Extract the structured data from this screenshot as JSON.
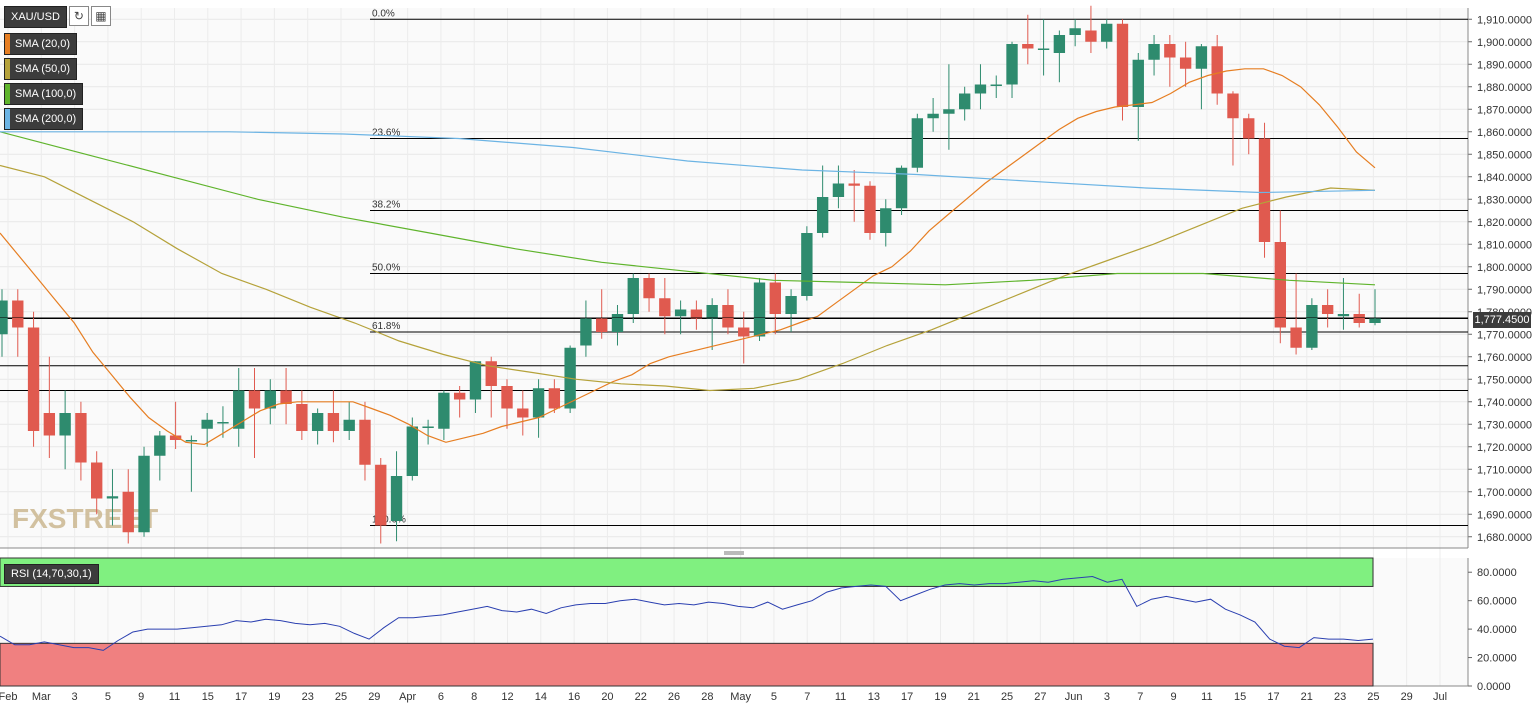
{
  "toolbar": {
    "symbol": "XAU/USD",
    "refresh_icon": "refresh-icon",
    "calendar_icon": "calendar-icon"
  },
  "indicators": [
    {
      "label": "SMA (20,0)",
      "color": "#e67e22"
    },
    {
      "label": "SMA (50,0)",
      "color": "#b5a23a"
    },
    {
      "label": "SMA (100,0)",
      "color": "#5fb42c"
    },
    {
      "label": "SMA (200,0)",
      "color": "#6cb4e4"
    }
  ],
  "watermark": "FXSTREET",
  "current_price_label": "1,777.4500",
  "rsi": {
    "label": "RSI (14,70,30,1)",
    "overbought": 70,
    "oversold": 30,
    "colors": {
      "overbought_zone": "#80f080",
      "oversold_zone": "#f08080",
      "line": "#2a3fb0"
    },
    "axis_ticks": [
      "80.0000",
      "60.0000",
      "40.0000",
      "20.0000",
      "0.0000"
    ]
  },
  "chart_data": {
    "type": "candlestick",
    "title": "",
    "ylim": [
      1675,
      1915
    ],
    "y_ticks": [
      "1,910.0000",
      "1,900.0000",
      "1,890.0000",
      "1,880.0000",
      "1,870.0000",
      "1,860.0000",
      "1,850.0000",
      "1,840.0000",
      "1,830.0000",
      "1,820.0000",
      "1,810.0000",
      "1,800.0000",
      "1,790.0000",
      "1,780.0000",
      "1,770.0000",
      "1,760.0000",
      "1,750.0000",
      "1,740.0000",
      "1,730.0000",
      "1,720.0000",
      "1,710.0000",
      "1,700.0000",
      "1,690.0000",
      "1,680.0000"
    ],
    "x_ticks": [
      "Feb",
      "Mar",
      "3",
      "5",
      "9",
      "11",
      "15",
      "17",
      "19",
      "23",
      "25",
      "29",
      "Apr",
      "6",
      "8",
      "12",
      "14",
      "16",
      "20",
      "22",
      "26",
      "28",
      "May",
      "5",
      "7",
      "11",
      "13",
      "17",
      "19",
      "21",
      "25",
      "27",
      "Jun",
      "3",
      "7",
      "9",
      "11",
      "15",
      "17",
      "21",
      "23",
      "25",
      "29",
      "Jul"
    ],
    "colors": {
      "up": "#2e8b6e",
      "down": "#e05a4f",
      "grid": "#e8e8e8"
    },
    "candles": [
      {
        "date": "Feb 26",
        "open": 1770,
        "high": 1790,
        "low": 1760,
        "close": 1785
      },
      {
        "date": "Feb 26b",
        "open": 1785,
        "high": 1790,
        "low": 1760,
        "close": 1773
      },
      {
        "date": "Mar 1",
        "open": 1773,
        "high": 1780,
        "low": 1720,
        "close": 1727
      },
      {
        "date": "Mar 2",
        "open": 1735,
        "high": 1760,
        "low": 1715,
        "close": 1725
      },
      {
        "date": "Mar 3",
        "open": 1725,
        "high": 1745,
        "low": 1710,
        "close": 1735
      },
      {
        "date": "Mar 4",
        "open": 1735,
        "high": 1740,
        "low": 1705,
        "close": 1713
      },
      {
        "date": "Mar 5",
        "open": 1713,
        "high": 1718,
        "low": 1690,
        "close": 1697
      },
      {
        "date": "Mar 8",
        "open": 1697,
        "high": 1710,
        "low": 1685,
        "close": 1698
      },
      {
        "date": "Mar 8b",
        "open": 1700,
        "high": 1710,
        "low": 1677,
        "close": 1682
      },
      {
        "date": "Mar 9",
        "open": 1682,
        "high": 1720,
        "low": 1680,
        "close": 1716
      },
      {
        "date": "Mar 10",
        "open": 1716,
        "high": 1727,
        "low": 1705,
        "close": 1725
      },
      {
        "date": "Mar 11",
        "open": 1725,
        "high": 1740,
        "low": 1719,
        "close": 1723
      },
      {
        "date": "Mar 12",
        "open": 1723,
        "high": 1725,
        "low": 1700,
        "close": 1723
      },
      {
        "date": "Mar 15",
        "open": 1728,
        "high": 1735,
        "low": 1720,
        "close": 1732
      },
      {
        "date": "Mar 16",
        "open": 1731,
        "high": 1738,
        "low": 1724,
        "close": 1731
      },
      {
        "date": "Mar 17",
        "open": 1728,
        "high": 1755,
        "low": 1720,
        "close": 1745
      },
      {
        "date": "Mar 18",
        "open": 1745,
        "high": 1755,
        "low": 1715,
        "close": 1737
      },
      {
        "date": "Mar 19",
        "open": 1737,
        "high": 1750,
        "low": 1730,
        "close": 1745
      },
      {
        "date": "Mar 22",
        "open": 1745,
        "high": 1755,
        "low": 1730,
        "close": 1739
      },
      {
        "date": "Mar 23",
        "open": 1739,
        "high": 1745,
        "low": 1723,
        "close": 1727
      },
      {
        "date": "Mar 24",
        "open": 1727,
        "high": 1737,
        "low": 1721,
        "close": 1735
      },
      {
        "date": "Mar 25",
        "open": 1735,
        "high": 1745,
        "low": 1722,
        "close": 1727
      },
      {
        "date": "Mar 26",
        "open": 1727,
        "high": 1740,
        "low": 1723,
        "close": 1732
      },
      {
        "date": "Mar 29",
        "open": 1732,
        "high": 1740,
        "low": 1705,
        "close": 1712
      },
      {
        "date": "Mar 30",
        "open": 1712,
        "high": 1715,
        "low": 1677,
        "close": 1685
      },
      {
        "date": "Mar 31",
        "open": 1687,
        "high": 1718,
        "low": 1678,
        "close": 1707
      },
      {
        "date": "Apr 1",
        "open": 1707,
        "high": 1733,
        "low": 1705,
        "close": 1729
      },
      {
        "date": "Apr 2",
        "open": 1729,
        "high": 1732,
        "low": 1721,
        "close": 1729
      },
      {
        "date": "Apr 5",
        "open": 1728,
        "high": 1745,
        "low": 1723,
        "close": 1744
      },
      {
        "date": "Apr 6",
        "open": 1744,
        "high": 1747,
        "low": 1733,
        "close": 1741
      },
      {
        "date": "Apr 7",
        "open": 1741,
        "high": 1758,
        "low": 1735,
        "close": 1758
      },
      {
        "date": "Apr 8",
        "open": 1758,
        "high": 1760,
        "low": 1733,
        "close": 1747
      },
      {
        "date": "Apr 9",
        "open": 1747,
        "high": 1750,
        "low": 1728,
        "close": 1737
      },
      {
        "date": "Apr 12",
        "open": 1737,
        "high": 1745,
        "low": 1725,
        "close": 1733
      },
      {
        "date": "Apr 13",
        "open": 1733,
        "high": 1750,
        "low": 1724,
        "close": 1746
      },
      {
        "date": "Apr 14",
        "open": 1746,
        "high": 1750,
        "low": 1735,
        "close": 1737
      },
      {
        "date": "Apr 15",
        "open": 1737,
        "high": 1765,
        "low": 1735,
        "close": 1764
      },
      {
        "date": "Apr 16",
        "open": 1765,
        "high": 1785,
        "low": 1760,
        "close": 1777
      },
      {
        "date": "Apr 19",
        "open": 1777,
        "high": 1790,
        "low": 1768,
        "close": 1771
      },
      {
        "date": "Apr 20",
        "open": 1771,
        "high": 1783,
        "low": 1765,
        "close": 1779
      },
      {
        "date": "Apr 21",
        "open": 1779,
        "high": 1797,
        "low": 1775,
        "close": 1795
      },
      {
        "date": "Apr 22",
        "open": 1795,
        "high": 1797,
        "low": 1780,
        "close": 1786
      },
      {
        "date": "Apr 23",
        "open": 1786,
        "high": 1795,
        "low": 1770,
        "close": 1778
      },
      {
        "date": "Apr 26",
        "open": 1778,
        "high": 1785,
        "low": 1770,
        "close": 1781
      },
      {
        "date": "Apr 27",
        "open": 1781,
        "high": 1785,
        "low": 1772,
        "close": 1777
      },
      {
        "date": "Apr 28",
        "open": 1777,
        "high": 1786,
        "low": 1763,
        "close": 1783
      },
      {
        "date": "Apr 29",
        "open": 1783,
        "high": 1790,
        "low": 1770,
        "close": 1773
      },
      {
        "date": "Apr 30",
        "open": 1773,
        "high": 1780,
        "low": 1757,
        "close": 1769
      },
      {
        "date": "May 3",
        "open": 1769,
        "high": 1795,
        "low": 1767,
        "close": 1793
      },
      {
        "date": "May 4",
        "open": 1793,
        "high": 1797,
        "low": 1770,
        "close": 1779
      },
      {
        "date": "May 5",
        "open": 1779,
        "high": 1790,
        "low": 1771,
        "close": 1787
      },
      {
        "date": "May 6",
        "open": 1787,
        "high": 1818,
        "low": 1785,
        "close": 1815
      },
      {
        "date": "May 7",
        "open": 1815,
        "high": 1845,
        "low": 1813,
        "close": 1831
      },
      {
        "date": "May 10",
        "open": 1831,
        "high": 1845,
        "low": 1826,
        "close": 1837
      },
      {
        "date": "May 11",
        "open": 1837,
        "high": 1843,
        "low": 1820,
        "close": 1836
      },
      {
        "date": "May 12",
        "open": 1836,
        "high": 1838,
        "low": 1812,
        "close": 1815
      },
      {
        "date": "May 13",
        "open": 1815,
        "high": 1830,
        "low": 1809,
        "close": 1826
      },
      {
        "date": "May 14",
        "open": 1826,
        "high": 1845,
        "low": 1823,
        "close": 1844
      },
      {
        "date": "May 17",
        "open": 1844,
        "high": 1868,
        "low": 1842,
        "close": 1866
      },
      {
        "date": "May 18",
        "open": 1866,
        "high": 1875,
        "low": 1860,
        "close": 1868
      },
      {
        "date": "May 19",
        "open": 1868,
        "high": 1890,
        "low": 1852,
        "close": 1870
      },
      {
        "date": "May 20",
        "open": 1870,
        "high": 1880,
        "low": 1865,
        "close": 1877
      },
      {
        "date": "May 21",
        "open": 1877,
        "high": 1890,
        "low": 1870,
        "close": 1881
      },
      {
        "date": "May 24",
        "open": 1881,
        "high": 1885,
        "low": 1875,
        "close": 1881
      },
      {
        "date": "May 25",
        "open": 1881,
        "high": 1900,
        "low": 1875,
        "close": 1899
      },
      {
        "date": "May 26",
        "open": 1899,
        "high": 1912,
        "low": 1890,
        "close": 1897
      },
      {
        "date": "May 27",
        "open": 1897,
        "high": 1910,
        "low": 1885,
        "close": 1897
      },
      {
        "date": "May 28",
        "open": 1895,
        "high": 1905,
        "low": 1882,
        "close": 1903
      },
      {
        "date": "May 31",
        "open": 1903,
        "high": 1910,
        "low": 1898,
        "close": 1906
      },
      {
        "date": "Jun 1",
        "open": 1905,
        "high": 1916,
        "low": 1895,
        "close": 1900
      },
      {
        "date": "Jun 1b",
        "open": 1900,
        "high": 1910,
        "low": 1897,
        "close": 1908
      },
      {
        "date": "Jun 2",
        "open": 1908,
        "high": 1910,
        "low": 1865,
        "close": 1871
      },
      {
        "date": "Jun 3",
        "open": 1871,
        "high": 1895,
        "low": 1856,
        "close": 1892
      },
      {
        "date": "Jun 4",
        "open": 1892,
        "high": 1903,
        "low": 1885,
        "close": 1899
      },
      {
        "date": "Jun 7",
        "open": 1899,
        "high": 1903,
        "low": 1880,
        "close": 1893
      },
      {
        "date": "Jun 8",
        "open": 1893,
        "high": 1900,
        "low": 1880,
        "close": 1888
      },
      {
        "date": "Jun 9",
        "open": 1888,
        "high": 1899,
        "low": 1870,
        "close": 1898
      },
      {
        "date": "Jun 10",
        "open": 1898,
        "high": 1903,
        "low": 1872,
        "close": 1877
      },
      {
        "date": "Jun 11",
        "open": 1877,
        "high": 1878,
        "low": 1845,
        "close": 1866
      },
      {
        "date": "Jun 14",
        "open": 1866,
        "high": 1868,
        "low": 1850,
        "close": 1857
      },
      {
        "date": "Jun 15",
        "open": 1857,
        "high": 1864,
        "low": 1804,
        "close": 1811
      },
      {
        "date": "Jun 16",
        "open": 1811,
        "high": 1825,
        "low": 1766,
        "close": 1773
      },
      {
        "date": "Jun 17",
        "open": 1773,
        "high": 1797,
        "low": 1761,
        "close": 1764
      },
      {
        "date": "Jun 18",
        "open": 1764,
        "high": 1786,
        "low": 1763,
        "close": 1783
      },
      {
        "date": "Jun 21",
        "open": 1783,
        "high": 1790,
        "low": 1773,
        "close": 1779
      },
      {
        "date": "Jun 22",
        "open": 1778,
        "high": 1795,
        "low": 1772,
        "close": 1779
      },
      {
        "date": "Jun 23",
        "open": 1779,
        "high": 1788,
        "low": 1773,
        "close": 1775
      },
      {
        "date": "Jun 24",
        "open": 1775,
        "high": 1790,
        "low": 1774,
        "close": 1777
      }
    ],
    "sma": [
      {
        "name": "SMA (20,0)",
        "color": "#e67e22",
        "values": [
          1815,
          1805,
          1795,
          1785,
          1775,
          1762,
          1752,
          1742,
          1733,
          1727,
          1722,
          1721,
          1726,
          1731,
          1736,
          1739,
          1740,
          1740,
          1740,
          1740,
          1737,
          1734,
          1730,
          1725,
          1722,
          1724,
          1726,
          1729,
          1731,
          1733,
          1737,
          1741,
          1745,
          1749,
          1752,
          1757,
          1760,
          1762,
          1764,
          1766,
          1768,
          1770,
          1772,
          1775,
          1778,
          1784,
          1790,
          1796,
          1800,
          1807,
          1816,
          1823,
          1830,
          1837,
          1843,
          1849,
          1855,
          1861,
          1866,
          1869,
          1871,
          1872,
          1873,
          1877,
          1882,
          1885,
          1887,
          1888,
          1888,
          1885,
          1880,
          1872,
          1862,
          1851,
          1844
        ]
      },
      {
        "name": "SMA (50,0)",
        "color": "#b5a23a",
        "values": [
          1845,
          1840,
          1830,
          1820,
          1808,
          1797,
          1790,
          1782,
          1775,
          1767,
          1761,
          1756,
          1753,
          1750,
          1748,
          1747,
          1745,
          1746,
          1750,
          1757,
          1765,
          1772,
          1780,
          1788,
          1796,
          1803,
          1810,
          1818,
          1826,
          1831,
          1835,
          1834
        ]
      },
      {
        "name": "SMA (100,0)",
        "color": "#5fb42c",
        "values": [
          1860,
          1850,
          1840,
          1830,
          1822,
          1815,
          1808,
          1802,
          1798,
          1794,
          1793,
          1792,
          1794,
          1797,
          1797,
          1794,
          1792
        ]
      },
      {
        "name": "SMA (200,0)",
        "color": "#6cb4e4",
        "values": [
          1860,
          1860,
          1860,
          1859,
          1857,
          1853,
          1847,
          1843,
          1841,
          1838,
          1835,
          1833,
          1834
        ]
      }
    ],
    "fibonacci": [
      {
        "label": "0.0%",
        "value": 1910
      },
      {
        "label": "23.6%",
        "value": 1857
      },
      {
        "label": "38.2%",
        "value": 1825
      },
      {
        "label": "50.0%",
        "value": 1797
      },
      {
        "label": "61.8%",
        "value": 1771
      },
      {
        "label": "100.0%",
        "value": 1685
      }
    ],
    "horizontal_levels": [
      1777,
      1756,
      1745
    ],
    "rsi_values": [
      35,
      29,
      29,
      31,
      29,
      27,
      27,
      25,
      32,
      38,
      40,
      40,
      40,
      41,
      42,
      43,
      46,
      45,
      47,
      46,
      44,
      43,
      44,
      42,
      37,
      33,
      41,
      48,
      48,
      49,
      50,
      52,
      54,
      56,
      53,
      52,
      54,
      51,
      55,
      57,
      58,
      58,
      60,
      61,
      59,
      57,
      58,
      57,
      59,
      58,
      56,
      55,
      59,
      54,
      57,
      60,
      66,
      69,
      70,
      71,
      70,
      60,
      64,
      68,
      71,
      72,
      71,
      72,
      72,
      73,
      74,
      73,
      75,
      76,
      77,
      73,
      75,
      56,
      61,
      63,
      61,
      59,
      61,
      54,
      50,
      45,
      33,
      28,
      27,
      34,
      33,
      33,
      32,
      33
    ]
  }
}
